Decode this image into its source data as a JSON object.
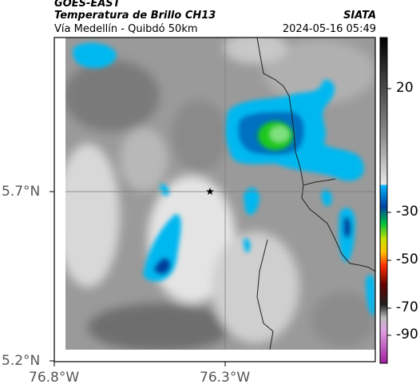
{
  "header": {
    "satellite": "GOES-EAST",
    "product": "Temperatura de Brillo CH13",
    "region": "Vía Medellín - Quibdó 50km",
    "agency": "SIATA",
    "datetime": "2024-05-16 05:49"
  },
  "axes": {
    "lat_ticks": [
      "5.7°N",
      "5.2°N"
    ],
    "lon_ticks": [
      "76.8°W",
      "76.3°W"
    ]
  },
  "colorbar": {
    "ticks": [
      "20",
      "-30",
      "-50",
      "-70",
      "-90"
    ],
    "value_range": [
      -95,
      45
    ]
  },
  "map": {
    "marker_icon": "star-icon"
  }
}
